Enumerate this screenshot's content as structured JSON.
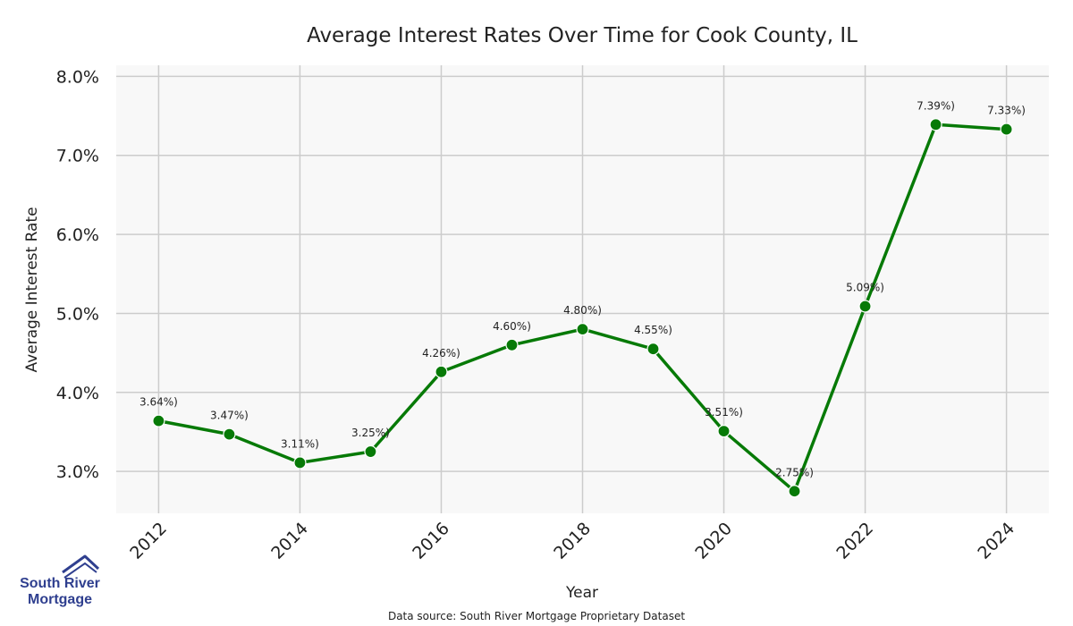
{
  "chart_data": {
    "type": "line",
    "title": "Average Interest Rates Over Time for Cook County, IL",
    "xlabel": "Year",
    "ylabel": "Average Interest Rate",
    "x": [
      2012,
      2013,
      2014,
      2015,
      2016,
      2017,
      2018,
      2019,
      2020,
      2021,
      2022,
      2023,
      2024
    ],
    "series": [
      {
        "values": [
          3.64,
          3.47,
          3.11,
          3.25,
          4.26,
          4.6,
          4.8,
          4.55,
          3.51,
          2.75,
          5.09,
          7.39,
          7.33
        ],
        "labels": [
          "3.64%)",
          "3.47%)",
          "3.11%)",
          "3.25%)",
          "4.26%)",
          "4.60%)",
          "4.80%)",
          "4.55%)",
          "3.51%)",
          "2.75%)",
          "5.09%)",
          "7.39%)",
          "7.33%)"
        ]
      }
    ],
    "xticks": [
      2012,
      2014,
      2016,
      2018,
      2020,
      2022,
      2024
    ],
    "xtick_labels": [
      "2012",
      "2014",
      "2016",
      "2018",
      "2020",
      "2022",
      "2024"
    ],
    "yticks": [
      3.0,
      4.0,
      5.0,
      6.0,
      7.0,
      8.0
    ],
    "ytick_labels": [
      "3.0%",
      "4.0%",
      "5.0%",
      "6.0%",
      "7.0%",
      "8.0%"
    ],
    "xlim": [
      2011.4,
      2024.6
    ],
    "ylim": [
      2.47,
      8.14
    ],
    "grid": true,
    "line_color": "#077a07",
    "marker_color": "#077a07",
    "plot_background": "#f8f8f8",
    "grid_color": "#cccccc"
  },
  "source_note": "Data source: South River Mortgage Proprietary Dataset",
  "logo": {
    "line1": "South River",
    "line2": "Mortgage",
    "color": "#2f3f8f"
  }
}
